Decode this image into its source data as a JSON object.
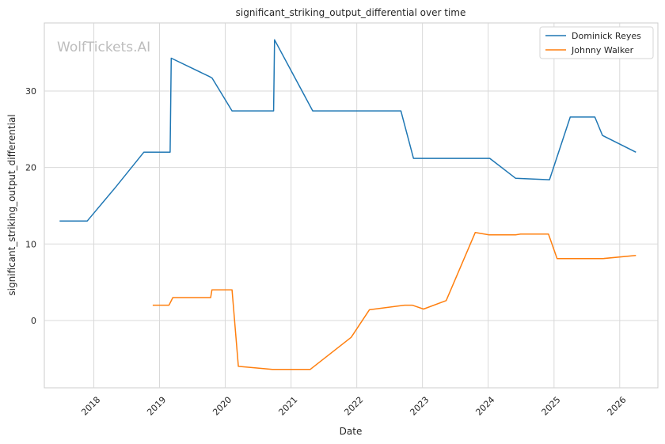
{
  "chart_data": {
    "type": "line",
    "title": "significant_striking_output_differential over time",
    "xlabel": "Date",
    "ylabel": "significant_striking_output_differential",
    "x_ticks": [
      "2018",
      "2019",
      "2020",
      "2021",
      "2022",
      "2023",
      "2024",
      "2025",
      "2026"
    ],
    "y_ticks": [
      0,
      10,
      20,
      30
    ],
    "xlim": [
      "2017-04-01",
      "2026-08-01"
    ],
    "ylim": [
      -8.8,
      38.9
    ],
    "grid": true,
    "legend_position": "top-right",
    "watermark": "WolfTickets.AI",
    "series": [
      {
        "name": "Dominick Reyes",
        "color": "#1f77b4",
        "points": [
          [
            "2017-06-25",
            13.0
          ],
          [
            "2017-11-25",
            13.0
          ],
          [
            "2018-05-01",
            17.4
          ],
          [
            "2018-10-06",
            22.0
          ],
          [
            "2019-03-01",
            22.0
          ],
          [
            "2019-03-07",
            34.3
          ],
          [
            "2019-10-05",
            31.9
          ],
          [
            "2019-10-20",
            31.7
          ],
          [
            "2020-02-08",
            27.4
          ],
          [
            "2020-09-26",
            27.4
          ],
          [
            "2020-10-01",
            36.7
          ],
          [
            "2021-05-01",
            27.4
          ],
          [
            "2022-09-03",
            27.4
          ],
          [
            "2022-11-12",
            21.2
          ],
          [
            "2024-01-10",
            21.2
          ],
          [
            "2024-06-01",
            18.6
          ],
          [
            "2024-12-07",
            18.4
          ],
          [
            "2025-04-01",
            26.6
          ],
          [
            "2025-08-16",
            26.6
          ],
          [
            "2025-09-27",
            24.2
          ],
          [
            "2026-04-01",
            22.0
          ]
        ]
      },
      {
        "name": "Johnny Walker",
        "color": "#ff7f0e",
        "points": [
          [
            "2018-11-24",
            2.0
          ],
          [
            "2019-02-23",
            2.0
          ],
          [
            "2019-03-16",
            3.0
          ],
          [
            "2019-10-12",
            3.0
          ],
          [
            "2019-10-19",
            4.0
          ],
          [
            "2020-02-08",
            4.0
          ],
          [
            "2020-03-14",
            -6.0
          ],
          [
            "2020-09-19",
            -6.4
          ],
          [
            "2021-04-17",
            -6.4
          ],
          [
            "2021-12-01",
            -2.2
          ],
          [
            "2022-03-12",
            1.4
          ],
          [
            "2022-09-24",
            2.0
          ],
          [
            "2022-11-05",
            2.0
          ],
          [
            "2023-01-07",
            1.5
          ],
          [
            "2023-05-13",
            2.6
          ],
          [
            "2023-10-21",
            11.5
          ],
          [
            "2024-01-06",
            11.2
          ],
          [
            "2024-06-01",
            11.2
          ],
          [
            "2024-06-29",
            11.3
          ],
          [
            "2024-12-01",
            11.3
          ],
          [
            "2025-01-18",
            8.1
          ],
          [
            "2025-10-01",
            8.1
          ],
          [
            "2026-04-01",
            8.5
          ]
        ]
      }
    ]
  }
}
